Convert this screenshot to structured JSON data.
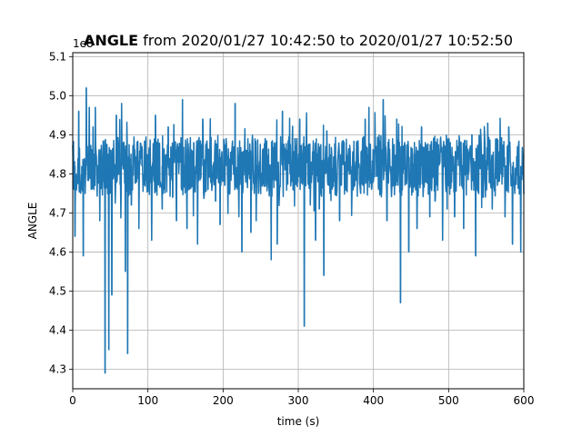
{
  "chart_data": {
    "type": "line",
    "title_bold": "ANGLE",
    "title_rest": " from 2020/01/27 10:42:50 to 2020/01/27 10:52:50",
    "xlabel": "time (s)",
    "ylabel": "ANGLE",
    "offset_label": "1e8",
    "xlim": [
      0,
      600
    ],
    "ylim": [
      4.25,
      5.11
    ],
    "xticks": [
      0,
      100,
      200,
      300,
      400,
      500,
      600
    ],
    "yticks": [
      4.3,
      4.4,
      4.5,
      4.6,
      4.7,
      4.8,
      4.9,
      5.0,
      5.1
    ],
    "xtick_labels": [
      "0",
      "100",
      "200",
      "300",
      "400",
      "500",
      "600"
    ],
    "ytick_labels": [
      "4.3",
      "4.4",
      "4.5",
      "4.6",
      "4.7",
      "4.8",
      "4.9",
      "5.0",
      "5.1"
    ],
    "grid": true,
    "series": [
      {
        "color": "#1f77b4",
        "band": {
          "center": 4.82,
          "low": 4.74,
          "high": 4.9
        },
        "spikes": [
          [
            3,
            4.64
          ],
          [
            8,
            4.96
          ],
          [
            12,
            4.77
          ],
          [
            14,
            4.59
          ],
          [
            18,
            5.02
          ],
          [
            22,
            4.97
          ],
          [
            27,
            4.92
          ],
          [
            30,
            4.97
          ],
          [
            36,
            4.68
          ],
          [
            43,
            4.29
          ],
          [
            48,
            4.35
          ],
          [
            52,
            4.49
          ],
          [
            58,
            4.95
          ],
          [
            62,
            4.83
          ],
          [
            65,
            4.98
          ],
          [
            70,
            4.55
          ],
          [
            73,
            4.34
          ],
          [
            78,
            4.72
          ],
          [
            85,
            4.78
          ],
          [
            88,
            4.66
          ],
          [
            92,
            4.87
          ],
          [
            105,
            4.63
          ],
          [
            110,
            4.95
          ],
          [
            119,
            4.71
          ],
          [
            127,
            4.92
          ],
          [
            133,
            4.74
          ],
          [
            138,
            4.68
          ],
          [
            146,
            4.99
          ],
          [
            152,
            4.66
          ],
          [
            155,
            4.76
          ],
          [
            161,
            4.88
          ],
          [
            166,
            4.62
          ],
          [
            173,
            4.94
          ],
          [
            180,
            4.76
          ],
          [
            187,
            4.79
          ],
          [
            190,
            4.73
          ],
          [
            196,
            4.67
          ],
          [
            204,
            4.89
          ],
          [
            216,
            4.98
          ],
          [
            220,
            4.84
          ],
          [
            225,
            4.6
          ],
          [
            231,
            4.86
          ],
          [
            237,
            4.65
          ],
          [
            244,
            4.68
          ],
          [
            248,
            4.79
          ],
          [
            256,
            4.89
          ],
          [
            264,
            4.58
          ],
          [
            272,
            4.62
          ],
          [
            279,
            4.96
          ],
          [
            285,
            4.86
          ],
          [
            291,
            4.78
          ],
          [
            298,
            4.89
          ],
          [
            302,
            4.94
          ],
          [
            308,
            4.41
          ],
          [
            316,
            4.72
          ],
          [
            323,
            4.63
          ],
          [
            328,
            4.71
          ],
          [
            334,
            4.54
          ],
          [
            338,
            4.91
          ],
          [
            342,
            4.75
          ],
          [
            348,
            4.78
          ],
          [
            355,
            4.68
          ],
          [
            362,
            4.83
          ],
          [
            370,
            4.8
          ],
          [
            375,
            4.77
          ],
          [
            383,
            4.75
          ],
          [
            389,
            4.94
          ],
          [
            394,
            4.97
          ],
          [
            401,
            4.86
          ],
          [
            407,
            4.76
          ],
          [
            413,
            4.99
          ],
          [
            418,
            4.68
          ],
          [
            425,
            4.8
          ],
          [
            431,
            4.94
          ],
          [
            436,
            4.47
          ],
          [
            441,
            4.87
          ],
          [
            447,
            4.6
          ],
          [
            452,
            4.85
          ],
          [
            458,
            4.66
          ],
          [
            464,
            4.92
          ],
          [
            470,
            4.79
          ],
          [
            475,
            4.69
          ],
          [
            482,
            4.73
          ],
          [
            487,
            4.84
          ],
          [
            492,
            4.63
          ],
          [
            498,
            4.71
          ],
          [
            502,
            4.88
          ],
          [
            508,
            4.69
          ],
          [
            513,
            4.87
          ],
          [
            520,
            4.66
          ],
          [
            525,
            4.8
          ],
          [
            531,
            4.9
          ],
          [
            536,
            4.59
          ],
          [
            541,
            4.83
          ],
          [
            546,
            4.74
          ],
          [
            552,
            4.93
          ],
          [
            558,
            4.71
          ],
          [
            564,
            4.89
          ],
          [
            570,
            4.8
          ],
          [
            575,
            4.69
          ],
          [
            580,
            4.92
          ],
          [
            585,
            4.62
          ],
          [
            592,
            4.84
          ],
          [
            596,
            4.6
          ]
        ]
      }
    ]
  }
}
